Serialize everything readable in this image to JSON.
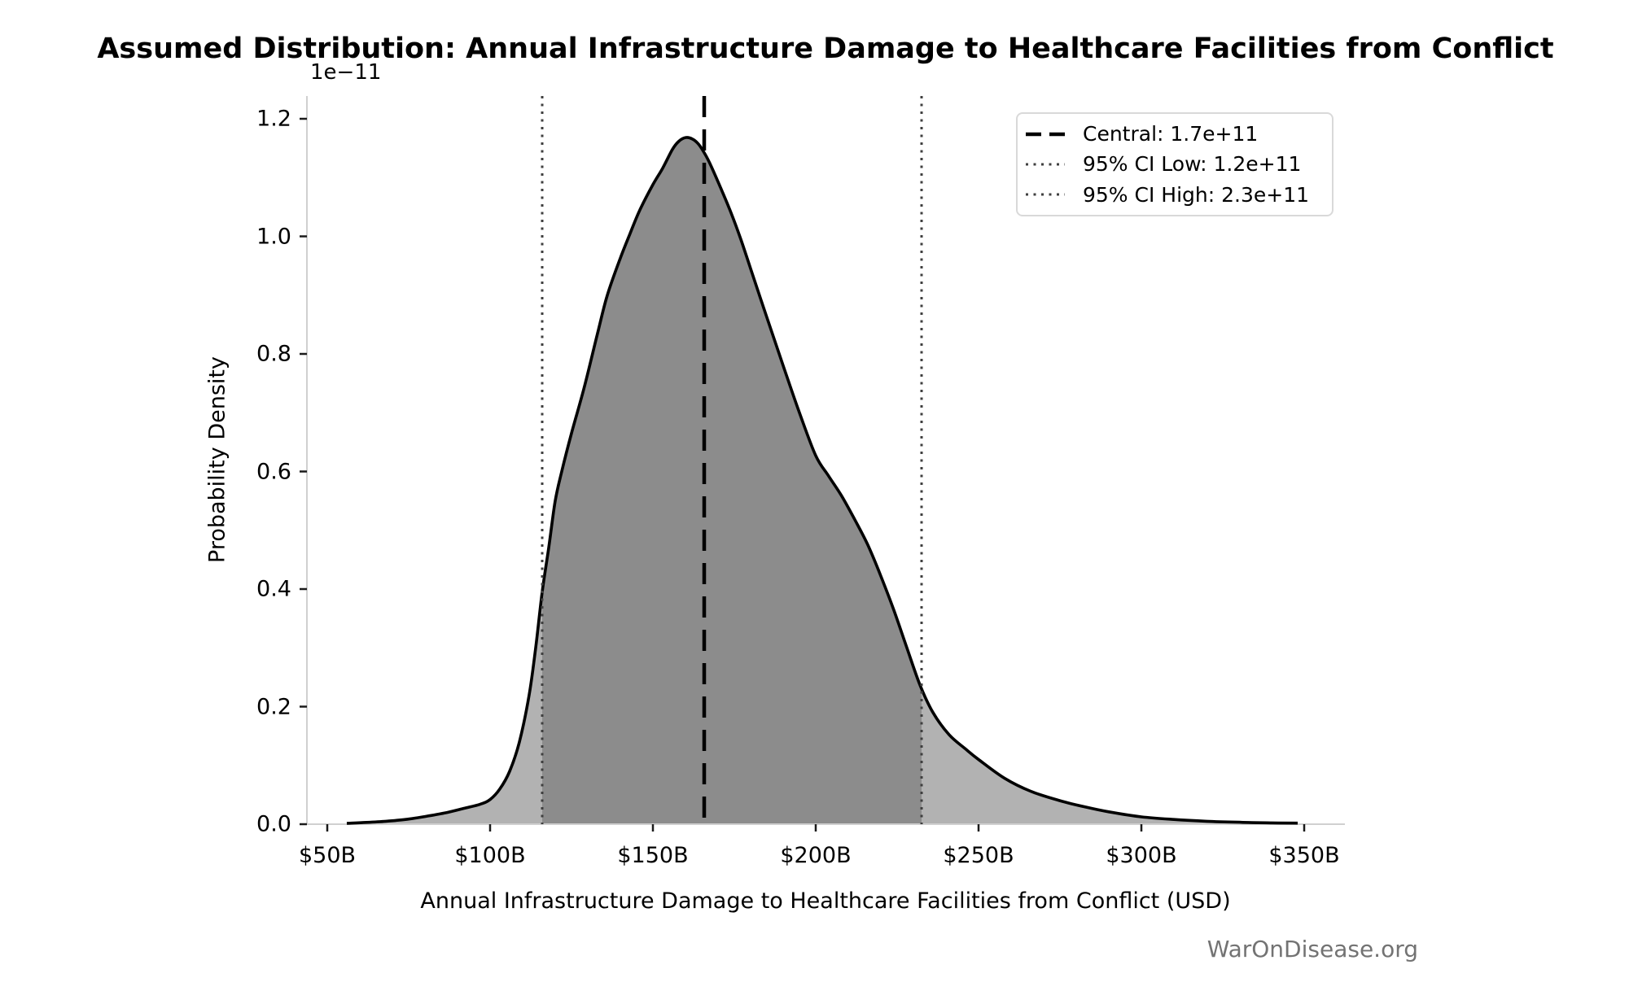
{
  "chart_data": {
    "type": "area",
    "title": "Assumed Distribution: Annual Infrastructure Damage to Healthcare Facilities from Conflict",
    "xlabel": "Annual Infrastructure Damage to Healthcare Facilities from Conflict (USD)",
    "ylabel": "Probability Density",
    "y_offset_label": "1e−11",
    "watermark": "WarOnDisease.org",
    "grid": false,
    "legend_position": "upper right",
    "xlim_billions": [
      43.75,
      362.5
    ],
    "ylim_1e_minus_11": [
      0,
      1.239
    ],
    "x_ticks": [
      {
        "value": 50,
        "label": "$50B"
      },
      {
        "value": 100,
        "label": "$100B"
      },
      {
        "value": 150,
        "label": "$150B"
      },
      {
        "value": 200,
        "label": "$200B"
      },
      {
        "value": 250,
        "label": "$250B"
      },
      {
        "value": 300,
        "label": "$300B"
      },
      {
        "value": 350,
        "label": "$350B"
      }
    ],
    "y_ticks": [
      {
        "value": 0.0,
        "label": "0.0"
      },
      {
        "value": 0.2,
        "label": "0.2"
      },
      {
        "value": 0.4,
        "label": "0.4"
      },
      {
        "value": 0.6,
        "label": "0.6"
      },
      {
        "value": 0.8,
        "label": "0.8"
      },
      {
        "value": 1.0,
        "label": "1.0"
      },
      {
        "value": 1.2,
        "label": "1.2"
      }
    ],
    "markers": {
      "central": {
        "label": "Central: 1.7e+11",
        "value_billions": 165.75,
        "style": "dashed",
        "color": "#000000"
      },
      "ci_low": {
        "label": "95% CI Low: 1.2e+11",
        "value_billions": 116.0,
        "style": "dotted",
        "color": "#3f3f3f"
      },
      "ci_high": {
        "label": "95% CI High: 2.3e+11",
        "value_billions": 232.5,
        "style": "dotted",
        "color": "#3f3f3f"
      }
    },
    "legend": {
      "entries": [
        {
          "label": "Central: 1.7e+11",
          "style": "dashed",
          "color": "#000000"
        },
        {
          "label": "95% CI Low: 1.2e+11",
          "style": "dotted",
          "color": "#3f3f3f"
        },
        {
          "label": "95% CI High: 2.3e+11",
          "style": "dotted",
          "color": "#3f3f3f"
        }
      ]
    },
    "colors": {
      "fill_outer": "#b2b2b2",
      "fill_inner": "#8c8c8c",
      "curve": "#000000",
      "spine": "#d0d0d0",
      "tick": "#1a1a1a",
      "text": "#000000",
      "watermark": "#737373"
    },
    "curve_points_billions_density1e11": [
      [
        56,
        0.0015
      ],
      [
        62,
        0.003
      ],
      [
        68,
        0.005
      ],
      [
        74,
        0.008
      ],
      [
        80,
        0.013
      ],
      [
        86,
        0.019
      ],
      [
        92,
        0.027
      ],
      [
        97,
        0.034
      ],
      [
        100,
        0.042
      ],
      [
        103,
        0.06
      ],
      [
        106,
        0.09
      ],
      [
        109,
        0.14
      ],
      [
        112,
        0.22
      ],
      [
        114,
        0.3
      ],
      [
        116,
        0.395
      ],
      [
        118,
        0.47
      ],
      [
        120,
        0.55
      ],
      [
        122,
        0.6
      ],
      [
        125,
        0.665
      ],
      [
        129,
        0.745
      ],
      [
        133,
        0.835
      ],
      [
        136,
        0.9
      ],
      [
        140,
        0.963
      ],
      [
        143,
        1.005
      ],
      [
        146,
        1.045
      ],
      [
        150,
        1.088
      ],
      [
        153,
        1.116
      ],
      [
        156,
        1.148
      ],
      [
        158,
        1.162
      ],
      [
        160,
        1.168
      ],
      [
        162,
        1.166
      ],
      [
        164,
        1.157
      ],
      [
        166,
        1.14
      ],
      [
        168,
        1.118
      ],
      [
        171,
        1.08
      ],
      [
        174,
        1.04
      ],
      [
        177,
        0.995
      ],
      [
        180,
        0.945
      ],
      [
        185,
        0.862
      ],
      [
        190,
        0.78
      ],
      [
        195,
        0.7
      ],
      [
        200,
        0.627
      ],
      [
        204,
        0.592
      ],
      [
        208,
        0.558
      ],
      [
        212,
        0.518
      ],
      [
        216,
        0.475
      ],
      [
        220,
        0.422
      ],
      [
        224,
        0.364
      ],
      [
        228,
        0.3
      ],
      [
        232,
        0.237
      ],
      [
        236,
        0.19
      ],
      [
        241,
        0.152
      ],
      [
        246,
        0.128
      ],
      [
        250,
        0.11
      ],
      [
        258,
        0.078
      ],
      [
        266,
        0.056
      ],
      [
        275,
        0.04
      ],
      [
        283,
        0.029
      ],
      [
        290,
        0.021
      ],
      [
        300,
        0.0125
      ],
      [
        310,
        0.008
      ],
      [
        320,
        0.005
      ],
      [
        330,
        0.0033
      ],
      [
        340,
        0.0022
      ],
      [
        348,
        0.0018
      ]
    ]
  }
}
